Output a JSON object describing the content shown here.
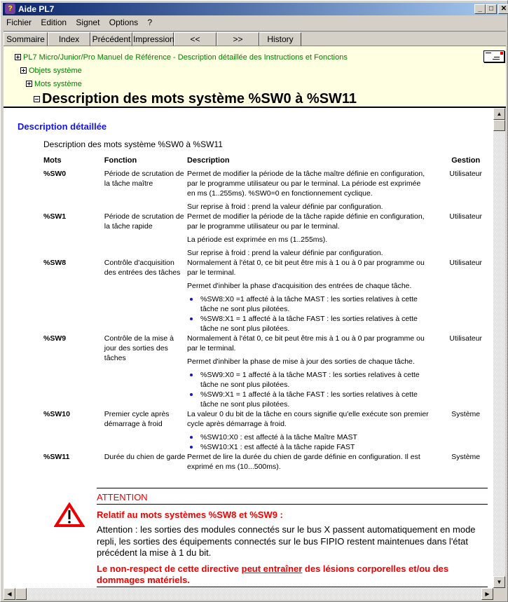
{
  "window": {
    "title": "Aide PL7",
    "minimize": "_",
    "maximize": "□",
    "close": "✕"
  },
  "menu": [
    "Fichier",
    "Edition",
    "Signet",
    "Options",
    "?"
  ],
  "toolbar": [
    "Sommaire",
    "Index",
    "Précédent",
    "Impression",
    "<<",
    ">>",
    "History"
  ],
  "breadcrumb": [
    "PL7 Micro/Junior/Pro Manuel de Référence - Description détaillée des Instructions et Fonctions",
    "Objets système",
    "Mots système"
  ],
  "page_title": "Description des mots système %SW0 à %SW11",
  "section_title": "Description détaillée",
  "subtitle": "Description des mots système %SW0 à %SW11",
  "table": {
    "headers": [
      "Mots",
      "Fonction",
      "Description",
      "Gestion"
    ],
    "rows": [
      {
        "mot": "%SW0",
        "fonction": "Période de scrutation de la tâche maître",
        "desc": [
          "Permet de modifier la période de la tâche maître définie en configuration, par le programme utilisateur ou par le terminal. La période est exprimée en ms (1..255ms). %SW0=0 en fonctionnement cyclique.",
          "Sur reprise à froid : prend la valeur définie par configuration."
        ],
        "gestion": "Utilisateur"
      },
      {
        "mot": "%SW1",
        "fonction": "Période de scrutation de la tâche rapide",
        "desc": [
          "Permet de modifier la période de la tâche rapide définie en configuration, par le programme utilisateur ou par le terminal.",
          "La période est exprimée en ms (1..255ms).",
          "Sur reprise à froid : prend la valeur définie par configuration."
        ],
        "gestion": "Utilisateur"
      },
      {
        "mot": "%SW8",
        "fonction": "Contrôle d'acquisition des entrées des tâches",
        "desc": [
          "Normalement à l'état 0, ce bit peut être mis à 1 ou à 0 par programme ou par le terminal.",
          "Permet d'inhiber la phase d'acquisition des entrées de chaque tâche."
        ],
        "bullets": [
          "%SW8:X0 =1 affecté à la tâche MAST : les sorties relatives à cette tâche ne sont plus pilotées.",
          "%SW8:X1 = 1 affecté à la tâche FAST : les sorties relatives à cette tâche ne sont plus pilotées."
        ],
        "gestion": "Utilisateur"
      },
      {
        "mot": "%SW9",
        "fonction": "Contrôle de la mise à jour des sorties des tâches",
        "desc": [
          "Normalement à l'état 0, ce bit peut être mis à 1 ou à 0 par programme ou par le terminal.",
          "Permet d'inhiber la phase de mise à jour des sorties de chaque tâche."
        ],
        "bullets": [
          "%SW9:X0 = 1 affecté à la tâche MAST : les sorties relatives à cette tâche ne sont plus pilotées.",
          "%SW9:X1 = 1 affecté à la tâche FAST : les sorties relatives à cette tâche ne sont plus pilotées."
        ],
        "gestion": "Utilisateur"
      },
      {
        "mot": "%SW10",
        "fonction": "Premier cycle après démarrage à froid",
        "desc": [
          "La valeur 0 du bit de la tâche en cours signifie qu'elle exécute son premier cycle après démarrage à froid."
        ],
        "bullets": [
          "%SW10:X0 : est affecté à la tâche Maître MAST",
          "%SW10:X1 : est affecté à la tâche rapide FAST"
        ],
        "gestion": "Système"
      },
      {
        "mot": "%SW11",
        "fonction": "Durée du chien de garde",
        "desc": [
          "Permet de lire la durée du chien de garde définie en configuration. Il est exprimé en ms (10...500ms)."
        ],
        "gestion": "Système"
      }
    ]
  },
  "attention": {
    "title": "ATTENTION",
    "subtitle": "Relatif au mots systèmes %SW8 et %SW9 :",
    "body": "Attention : les sorties des modules connectés sur le bus X passent automatiquement en mode repli, les sorties des équipements connectés sur le bus FIPIO restent maintenues dans l'état précédent la mise à 1 du bit.",
    "warning_pre": "Le non-respect de cette directive ",
    "warning_underlined": "peut entraîner",
    "warning_post": " des lésions corporelles et/ou des dommages matériels.",
    "icon": "warning-triangle-icon"
  },
  "colors": {
    "header_bg": "#ffffe1",
    "link": "#008000",
    "section": "#1515e0",
    "warning": "#e00000"
  }
}
